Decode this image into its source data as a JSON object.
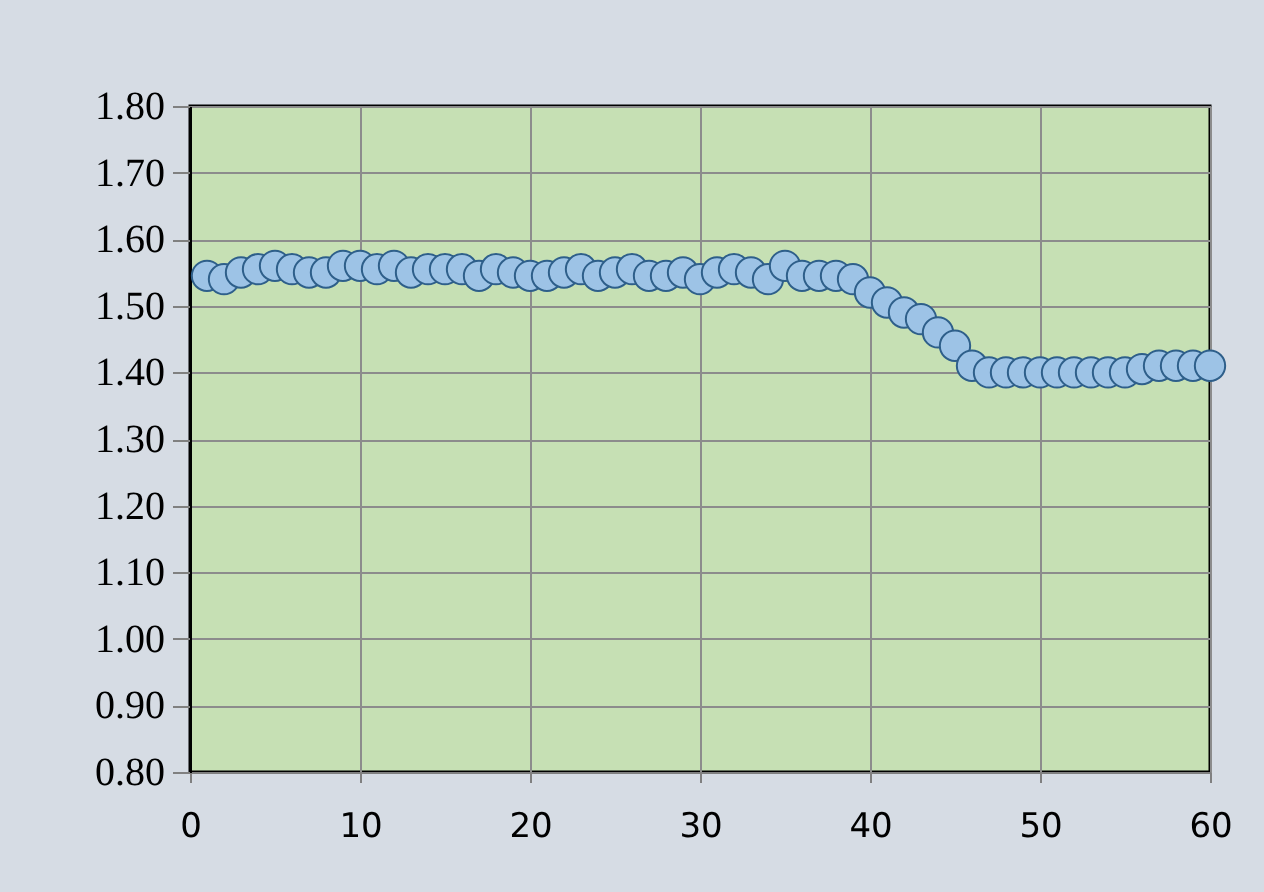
{
  "chart_data": {
    "type": "scatter",
    "marker": "circle",
    "grid": true,
    "x": [
      1,
      2,
      3,
      4,
      5,
      6,
      7,
      8,
      9,
      10,
      11,
      12,
      13,
      14,
      15,
      16,
      17,
      18,
      19,
      20,
      21,
      22,
      23,
      24,
      25,
      26,
      27,
      28,
      29,
      30,
      31,
      32,
      33,
      34,
      35,
      36,
      37,
      38,
      39,
      40,
      41,
      42,
      43,
      44,
      45,
      46,
      47,
      48,
      49,
      50,
      51,
      52,
      53,
      54,
      55,
      56,
      57,
      58,
      59,
      60
    ],
    "series": [
      {
        "color": "#9dc3e6",
        "values": [
          1.545,
          1.54,
          1.55,
          1.555,
          1.56,
          1.555,
          1.55,
          1.55,
          1.56,
          1.56,
          1.555,
          1.56,
          1.55,
          1.555,
          1.555,
          1.555,
          1.545,
          1.555,
          1.55,
          1.545,
          1.545,
          1.55,
          1.555,
          1.545,
          1.55,
          1.555,
          1.545,
          1.545,
          1.55,
          1.54,
          1.55,
          1.555,
          1.55,
          1.54,
          1.56,
          1.545,
          1.545,
          1.545,
          1.54,
          1.52,
          1.505,
          1.49,
          1.48,
          1.46,
          1.44,
          1.41,
          1.4,
          1.4,
          1.4,
          1.4,
          1.4,
          1.4,
          1.4,
          1.4,
          1.4,
          1.405,
          1.41,
          1.41,
          1.41,
          1.41
        ]
      }
    ],
    "xlim": [
      0,
      60
    ],
    "xticks": [
      0,
      10,
      20,
      30,
      40,
      50,
      60
    ],
    "ylim": [
      0.8,
      1.8
    ],
    "yticks": [
      {
        "value": 0.8,
        "label": "0.80"
      },
      {
        "value": 0.9,
        "label": "0.90"
      },
      {
        "value": 1.0,
        "label": "1.00"
      },
      {
        "value": 1.1,
        "label": "1.10"
      },
      {
        "value": 1.2,
        "label": "1.20"
      },
      {
        "value": 1.3,
        "label": "1.30"
      },
      {
        "value": 1.4,
        "label": "1.40"
      },
      {
        "value": 1.5,
        "label": "1.50"
      },
      {
        "value": 1.6,
        "label": "1.60"
      },
      {
        "value": 1.7,
        "label": "1.70"
      },
      {
        "value": 1.8,
        "label": "1.80"
      }
    ]
  }
}
